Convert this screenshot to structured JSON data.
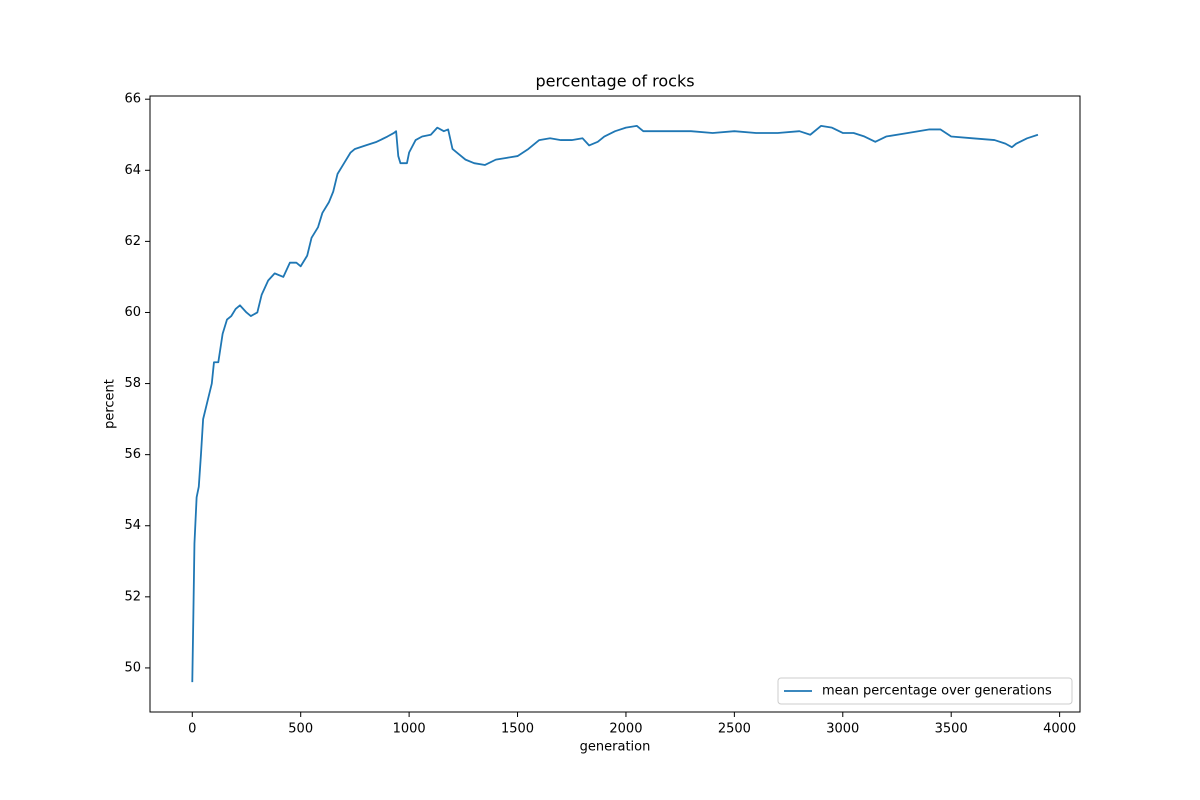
{
  "chart_data": {
    "type": "line",
    "title": "percentage of rocks",
    "x_label": "generation",
    "y_label": "percent",
    "x": [
      0,
      5,
      10,
      20,
      30,
      40,
      50,
      70,
      90,
      100,
      120,
      140,
      160,
      180,
      200,
      220,
      250,
      270,
      300,
      320,
      350,
      380,
      420,
      450,
      480,
      500,
      530,
      550,
      580,
      600,
      630,
      650,
      670,
      700,
      730,
      750,
      800,
      850,
      900,
      930,
      940,
      950,
      960,
      990,
      1000,
      1030,
      1060,
      1100,
      1130,
      1160,
      1180,
      1200,
      1230,
      1260,
      1300,
      1350,
      1400,
      1450,
      1500,
      1550,
      1600,
      1650,
      1700,
      1750,
      1800,
      1830,
      1870,
      1900,
      1950,
      2000,
      2050,
      2080,
      2100,
      2200,
      2300,
      2400,
      2500,
      2600,
      2700,
      2800,
      2850,
      2900,
      2950,
      3000,
      3050,
      3100,
      3150,
      3200,
      3300,
      3400,
      3450,
      3500,
      3600,
      3700,
      3750,
      3780,
      3800,
      3850,
      3900
    ],
    "series": [
      {
        "name": "mean percentage over generations",
        "color": "#1f77b4",
        "values": [
          49.6,
          51.5,
          53.5,
          54.8,
          55.1,
          56,
          57,
          57.5,
          58,
          58.6,
          58.6,
          59.4,
          59.8,
          59.9,
          60.1,
          60.2,
          60,
          59.9,
          60,
          60.5,
          60.9,
          61.1,
          61,
          61.4,
          61.4,
          61.3,
          61.6,
          62.1,
          62.4,
          62.8,
          63.1,
          63.4,
          63.9,
          64.2,
          64.5,
          64.6,
          64.7,
          64.8,
          64.95,
          65.05,
          65.1,
          64.4,
          64.2,
          64.2,
          64.5,
          64.85,
          64.95,
          65,
          65.2,
          65.1,
          65.15,
          64.6,
          64.45,
          64.3,
          64.2,
          64.15,
          64.3,
          64.35,
          64.4,
          64.6,
          64.85,
          64.9,
          64.85,
          64.85,
          64.9,
          64.7,
          64.8,
          64.95,
          65.1,
          65.2,
          65.25,
          65.1,
          65.1,
          65.1,
          65.1,
          65.05,
          65.1,
          65.05,
          65.05,
          65.1,
          65.0,
          65.25,
          65.2,
          65.05,
          65.05,
          64.95,
          64.8,
          64.95,
          65.05,
          65.15,
          65.15,
          64.95,
          64.9,
          64.85,
          64.75,
          64.65,
          64.75,
          64.9,
          65
        ]
      }
    ],
    "xlim": [
      -195,
      4094
    ],
    "ylim": [
      48.76,
      66.09
    ],
    "xticks": [
      0,
      500,
      1000,
      1500,
      2000,
      2500,
      3000,
      3500,
      4000
    ],
    "yticks": [
      50,
      52,
      54,
      56,
      58,
      60,
      62,
      64,
      66
    ],
    "legend": "lower right"
  }
}
